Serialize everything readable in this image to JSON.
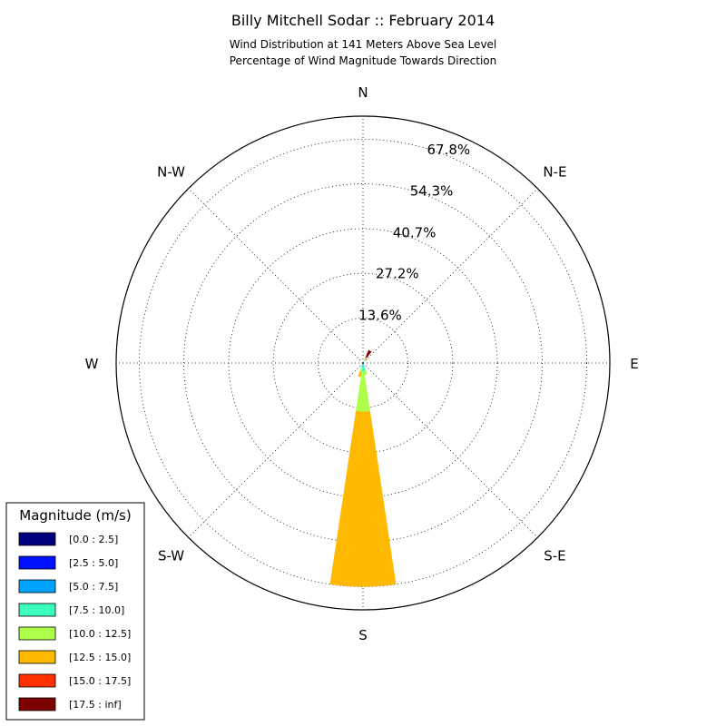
{
  "chart_data": {
    "type": "windrose",
    "title": "Billy Mitchell Sodar :: February 2014",
    "subtitle_lines": [
      "Wind Distribution at 141 Meters Above Sea Level",
      "Percentage of Wind Magnitude Towards Direction"
    ],
    "rmax": 74.8,
    "ring_values": [
      13.6,
      27.2,
      40.7,
      54.3,
      67.8
    ],
    "ring_labels": [
      "13.6%",
      "27.2%",
      "40.7%",
      "54.3%",
      "67.8%"
    ],
    "directions": [
      "N",
      "N-E",
      "E",
      "S-E",
      "S",
      "S-W",
      "W",
      "N-W"
    ],
    "legend": {
      "title": "Magnitude (m/s)",
      "bins": [
        {
          "label": "[0.0 : 2.5]",
          "color": "#00007f"
        },
        {
          "label": "[2.5 : 5.0]",
          "color": "#0010ff"
        },
        {
          "label": "[5.0 : 7.5]",
          "color": "#00a4ff"
        },
        {
          "label": "[7.5 : 10.0]",
          "color": "#3bffbb"
        },
        {
          "label": "[10.0 : 12.5]",
          "color": "#adff4a"
        },
        {
          "label": "[12.5 : 15.0]",
          "color": "#ffb900"
        },
        {
          "label": "[15.0 : 17.5]",
          "color": "#ff3000"
        },
        {
          "label": "[17.5 : inf]",
          "color": "#7f0000"
        }
      ]
    },
    "bars": [
      {
        "direction_deg": 180,
        "width_deg": 17,
        "stack": [
          0.2,
          0.3,
          0.6,
          1.6,
          12.0,
          53.1
        ]
      },
      {
        "direction_deg": 195,
        "width_deg": 12,
        "stack": [
          0.0,
          0.2,
          0.5,
          1.0,
          1.0,
          1.6
        ]
      },
      {
        "direction_deg": 165,
        "width_deg": 12,
        "stack": [
          0.0,
          0.2,
          0.5,
          1.6,
          1.4
        ]
      },
      {
        "direction_deg": 210,
        "width_deg": 12,
        "stack": [
          0.0,
          0.1,
          0.4,
          0.3
        ]
      },
      {
        "direction_deg": 30,
        "width_deg": 14,
        "stack": [
          0.0,
          0.2,
          0.3,
          0.4,
          0.4,
          0.4,
          0.4,
          2.2
        ]
      },
      {
        "direction_deg": 15,
        "width_deg": 12,
        "stack": [
          0.0,
          0.1,
          0.3,
          0.2
        ]
      },
      {
        "direction_deg": 45,
        "width_deg": 12,
        "stack": [
          0.0,
          0.1,
          0.2,
          0.2
        ]
      }
    ]
  }
}
